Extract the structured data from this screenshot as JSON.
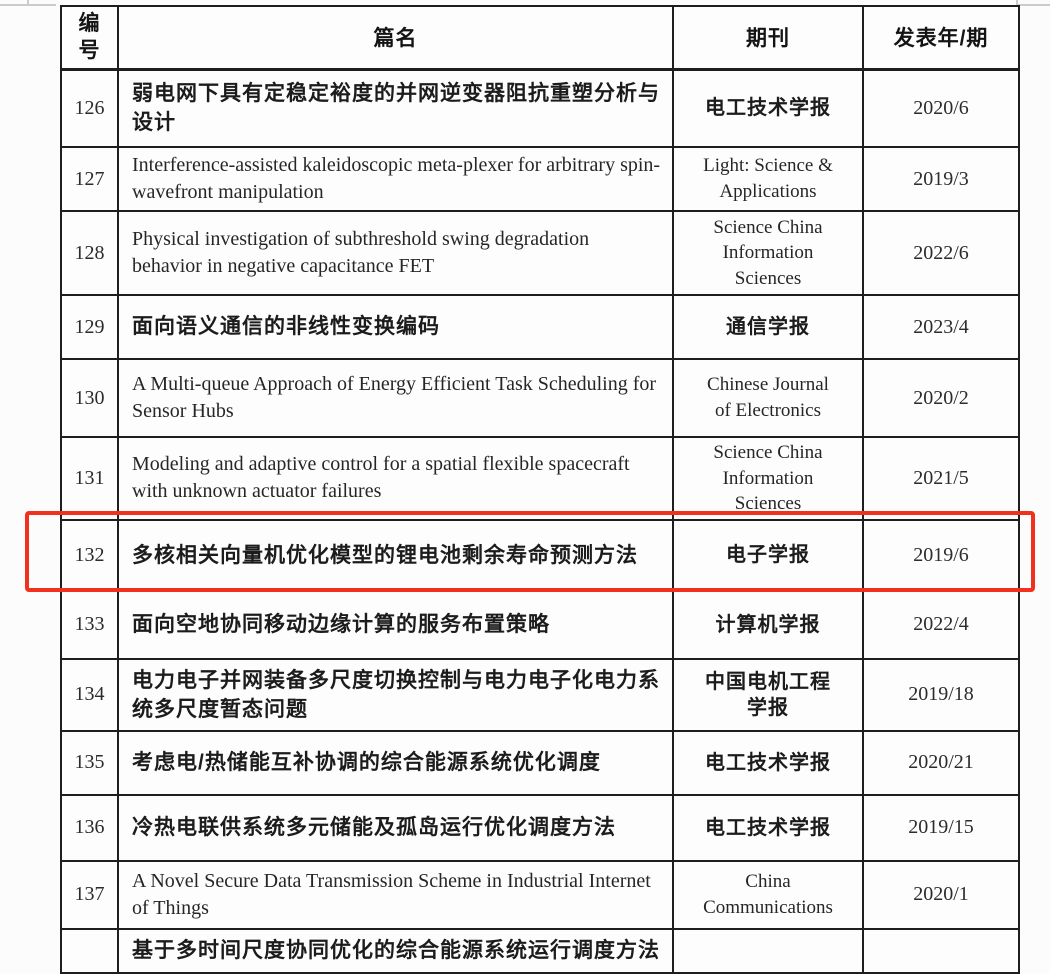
{
  "table": {
    "headers": {
      "id": "编号",
      "title": "篇名",
      "journal": "期刊",
      "year": "发表年/期"
    },
    "rows": [
      {
        "id": "126",
        "title": "弱电网下具有定稳定裕度的并网逆变器阻抗重塑分析与设计",
        "journal": "电工技术学报",
        "year": "2020/6"
      },
      {
        "id": "127",
        "title": "Interference-assisted kaleidoscopic meta-plexer for arbitrary spin-wavefront manipulation",
        "journal": "Light: Science & Applications",
        "year": "2019/3"
      },
      {
        "id": "128",
        "title": "Physical investigation of subthreshold swing degradation behavior in negative capacitance FET",
        "journal": "Science China Information Sciences",
        "year": "2022/6"
      },
      {
        "id": "129",
        "title": "面向语义通信的非线性变换编码",
        "journal": "通信学报",
        "year": "2023/4"
      },
      {
        "id": "130",
        "title": "A Multi-queue Approach of Energy Efficient Task Scheduling for Sensor Hubs",
        "journal": "Chinese Journal of Electronics",
        "year": "2020/2"
      },
      {
        "id": "131",
        "title": "Modeling and adaptive control for a spatial flexible spacecraft with unknown actuator failures",
        "journal": "Science China Information Sciences",
        "year": "2021/5"
      },
      {
        "id": "132",
        "title": "多核相关向量机优化模型的锂电池剩余寿命预测方法",
        "journal": "电子学报",
        "year": "2019/6"
      },
      {
        "id": "133",
        "title": "面向空地协同移动边缘计算的服务布置策略",
        "journal": "计算机学报",
        "year": "2022/4"
      },
      {
        "id": "134",
        "title": "电力电子并网装备多尺度切换控制与电力电子化电力系统多尺度暂态问题",
        "journal": "中国电机工程学报",
        "year": "2019/18"
      },
      {
        "id": "135",
        "title": "考虑电/热储能互补协调的综合能源系统优化调度",
        "journal": "电工技术学报",
        "year": "2020/21"
      },
      {
        "id": "136",
        "title": "冷热电联供系统多元储能及孤岛运行优化调度方法",
        "journal": "电工技术学报",
        "year": "2019/15"
      },
      {
        "id": "137",
        "title": "A Novel Secure Data Transmission Scheme in Industrial Internet of Things",
        "journal": "China Communications",
        "year": "2020/1"
      }
    ],
    "partial_row": {
      "title": "基于多时间尺度协同优化的综合能源系统运行调度方法"
    }
  },
  "annotation": {
    "type": "red-highlight-box",
    "around_row_id": "132",
    "color": "#f2301e"
  }
}
